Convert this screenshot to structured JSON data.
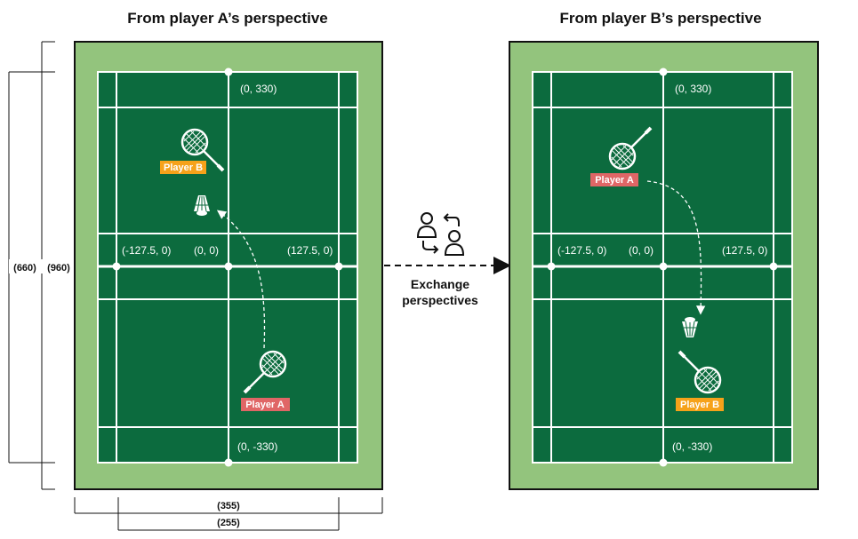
{
  "left_title": "From player A’s perspective",
  "right_title": "From player B’s perspective",
  "coords": {
    "top": "(0, 330)",
    "bottom": "(0, -330)",
    "left_mid": "(-127.5, 0)",
    "center": "(0, 0)",
    "right_mid": "(127.5, 0)"
  },
  "dims": {
    "outer_height": "(960)",
    "inner_height": "(660)",
    "outer_width": "(355)",
    "inner_width": "(255)"
  },
  "exchange": {
    "line1": "Exchange",
    "line2": "perspectives"
  },
  "players": {
    "a": "Player A",
    "b": "Player B"
  },
  "colors": {
    "outer_court": "#93c47d",
    "inner_court": "#0c6b3e",
    "line": "#ffffff",
    "player_a_tag": "#e06666",
    "player_b_tag": "#f6a21a"
  },
  "icons": [
    "racket-icon",
    "shuttlecock-icon",
    "swap-users-icon"
  ]
}
